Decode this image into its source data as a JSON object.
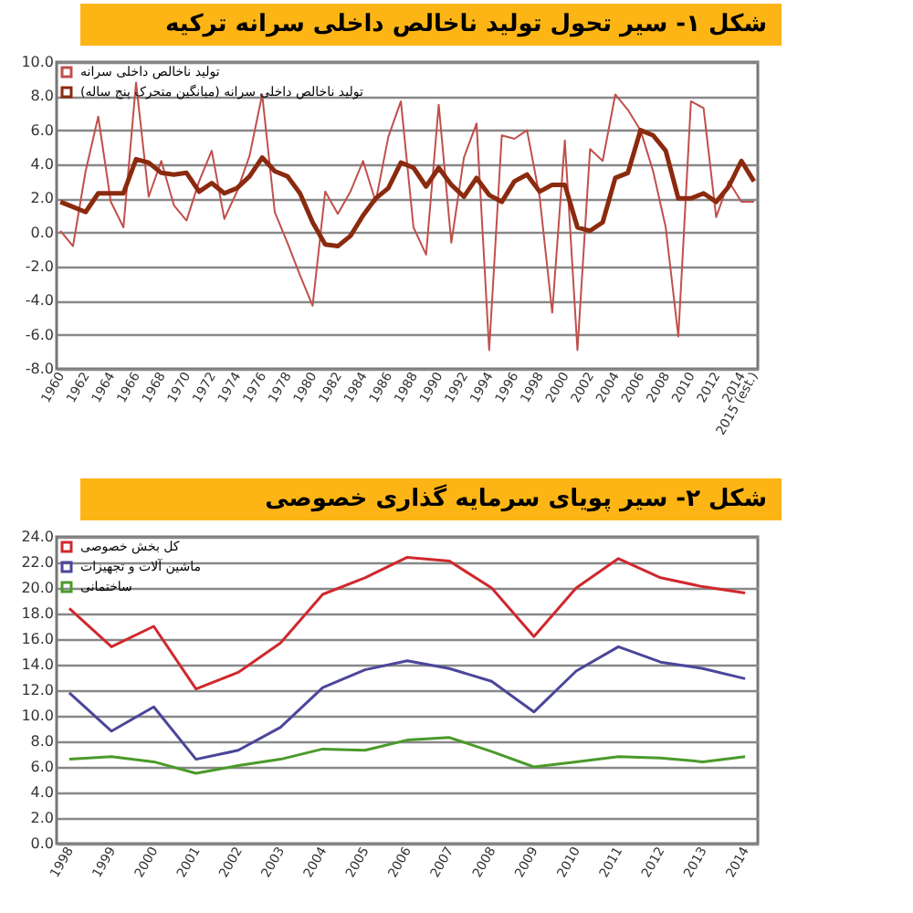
{
  "chart_data": [
    {
      "type": "line",
      "title": "شکل ۱- سیر تحول تولید ناخالص داخلی سرانه ترکیه",
      "categories": [
        "1960",
        null,
        "1962",
        null,
        "1964",
        null,
        "1966",
        null,
        "1968",
        null,
        "1970",
        null,
        "1972",
        null,
        "1974",
        null,
        "1976",
        null,
        "1978",
        null,
        "1980",
        null,
        "1982",
        null,
        "1984",
        null,
        "1986",
        null,
        "1988",
        null,
        "1990",
        null,
        "1992",
        null,
        "1994",
        null,
        "1996",
        null,
        "1998",
        null,
        "2000",
        null,
        "2002",
        null,
        "2004",
        null,
        "2006",
        null,
        "2008",
        null,
        "2010",
        null,
        "2012",
        null,
        "2014",
        "2015 (est.)"
      ],
      "series": [
        {
          "name": "تولید ناخالص داخلی سرانه",
          "color": "#c0504d",
          "values": [
            0.1,
            -0.8,
            3.6,
            6.8,
            1.8,
            0.3,
            8.8,
            2.1,
            4.2,
            1.6,
            0.7,
            3.0,
            4.8,
            0.8,
            2.4,
            4.5,
            8.1,
            1.2,
            -0.6,
            -2.5,
            -4.3,
            2.4,
            1.1,
            2.4,
            4.2,
            1.8,
            5.6,
            7.7,
            0.3,
            -1.3,
            7.5,
            -0.6,
            4.4,
            6.4,
            -6.9,
            5.7,
            5.5,
            6.0,
            2.1,
            -4.7,
            5.4,
            -6.9,
            4.9,
            4.2,
            8.1,
            7.2,
            6.0,
            3.6,
            0.3,
            -6.1,
            7.7,
            7.3,
            0.9,
            3.0,
            1.8,
            1.8
          ]
        },
        {
          "name": "تولید ناخالص داخلی سرانه (میانگین متحرک پنج ساله)",
          "color": "#8b2a0e",
          "values": [
            1.8,
            1.5,
            1.2,
            2.3,
            2.3,
            2.3,
            4.3,
            4.1,
            3.5,
            3.4,
            3.5,
            2.4,
            2.9,
            2.3,
            2.6,
            3.3,
            4.4,
            3.6,
            3.3,
            2.3,
            0.6,
            -0.7,
            -0.8,
            -0.2,
            1.0,
            2.0,
            2.6,
            4.1,
            3.8,
            2.7,
            3.8,
            2.8,
            2.1,
            3.2,
            2.2,
            1.8,
            3.0,
            3.4,
            2.4,
            2.8,
            2.8,
            0.3,
            0.1,
            0.6,
            3.2,
            3.5,
            6.0,
            5.7,
            4.8,
            2.0,
            2.0,
            2.3,
            1.8,
            2.7,
            4.2,
            3.0
          ]
        }
      ],
      "ylim": [
        -8,
        10
      ],
      "yticks": [
        {
          "value": -8,
          "label": "-8.0"
        },
        {
          "value": -6,
          "label": "-6.0"
        },
        {
          "value": -4,
          "label": "-4.0"
        },
        {
          "value": -2,
          "label": "-2.0"
        },
        {
          "value": 0,
          "label": "0.0"
        },
        {
          "value": 2,
          "label": "2.0"
        },
        {
          "value": 4,
          "label": "4.0"
        },
        {
          "value": 6,
          "label": "6.0"
        },
        {
          "value": 8,
          "label": "8.0"
        },
        {
          "value": 10,
          "label": "10.0"
        }
      ],
      "grid": "y",
      "legend": "top left"
    },
    {
      "type": "line",
      "title": "شکل ۲- سیر پویای سرمایه گذاری خصوصی",
      "categories": [
        "1998",
        "1999",
        "2000",
        "2001",
        "2002",
        "2003",
        "2004",
        "2005",
        "2006",
        "2007",
        "2008",
        "2009",
        "2010",
        "2011",
        "2012",
        "2013",
        "2014"
      ],
      "series": [
        {
          "name": "کل بخش خصوصی",
          "color": "#d0282e",
          "values": [
            18.4,
            15.4,
            17.0,
            12.1,
            13.4,
            15.7,
            19.5,
            20.8,
            22.4,
            22.1,
            20.0,
            16.2,
            20.0,
            22.3,
            20.8,
            20.1,
            19.6
          ]
        },
        {
          "name": "ماشین آلات و تجهیزات",
          "color": "#4b469a",
          "values": [
            11.8,
            8.8,
            10.7,
            6.6,
            7.3,
            9.1,
            12.2,
            13.6,
            14.3,
            13.7,
            12.7,
            10.3,
            13.5,
            15.4,
            14.2,
            13.7,
            12.9
          ]
        },
        {
          "name": "ساختمانی",
          "color": "#4a9a2a",
          "values": [
            6.6,
            6.8,
            6.4,
            5.5,
            6.1,
            6.6,
            7.4,
            7.3,
            8.1,
            8.3,
            7.2,
            6.0,
            6.4,
            6.8,
            6.7,
            6.4,
            6.8
          ]
        }
      ],
      "ylim": [
        0,
        24
      ],
      "yticks": [
        {
          "value": 0,
          "label": "0.0"
        },
        {
          "value": 2,
          "label": "2.0"
        },
        {
          "value": 4,
          "label": "4.0"
        },
        {
          "value": 6,
          "label": "6.0"
        },
        {
          "value": 8,
          "label": "8.0"
        },
        {
          "value": 10,
          "label": "10.0"
        },
        {
          "value": 12,
          "label": "12.0"
        },
        {
          "value": 14,
          "label": "14.0"
        },
        {
          "value": 16,
          "label": "16.0"
        },
        {
          "value": 18,
          "label": "18.0"
        },
        {
          "value": 20,
          "label": "20.0"
        },
        {
          "value": 22,
          "label": "22.0"
        },
        {
          "value": 24,
          "label": "24.0"
        }
      ],
      "grid": "y",
      "legend": "top left"
    }
  ]
}
